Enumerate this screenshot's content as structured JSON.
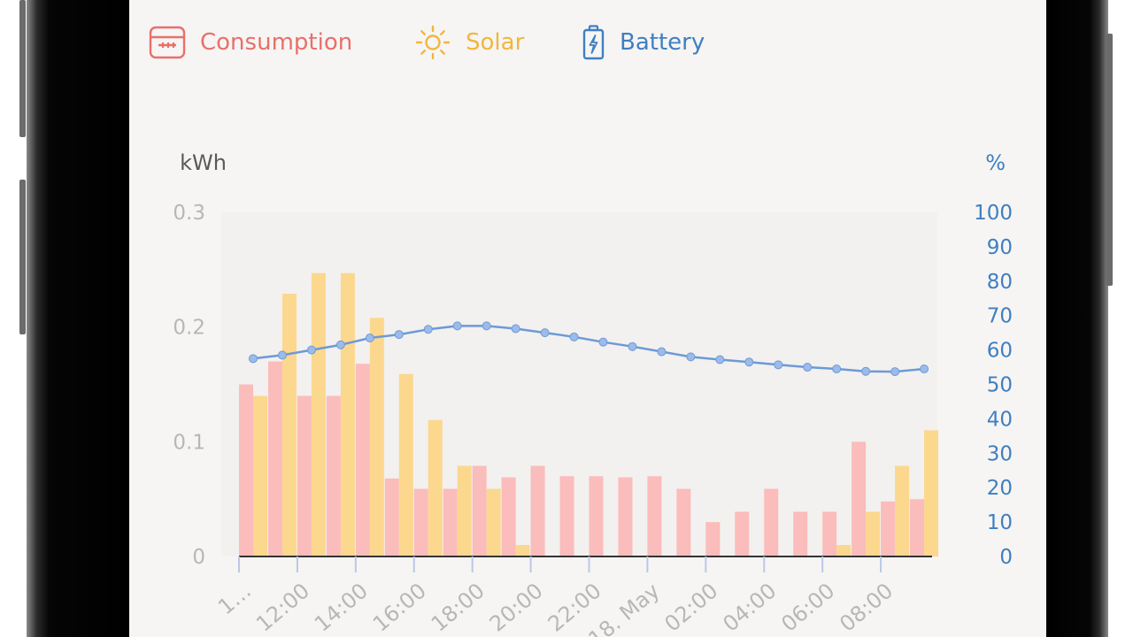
{
  "legend": {
    "consumption": {
      "label": "Consumption",
      "icon": "meter-icon",
      "color": "#e8706a"
    },
    "solar": {
      "label": "Solar",
      "icon": "sun-icon",
      "color": "#f2b63c"
    },
    "battery": {
      "label": "Battery",
      "icon": "battery-icon",
      "color": "#3f7fc1"
    }
  },
  "chart_data": {
    "type": "bar",
    "left_axis": {
      "label": "kWh",
      "ticks": [
        "0.3",
        "0.2",
        "0.1",
        "0"
      ],
      "ylim": [
        0,
        0.3
      ]
    },
    "right_axis": {
      "label": "%",
      "ticks": [
        "100",
        "90",
        "80",
        "70",
        "60",
        "50",
        "40",
        "30",
        "20",
        "10",
        "0"
      ],
      "ylim": [
        0,
        100
      ]
    },
    "x_tick_labels": [
      "1…",
      "12:00",
      "14:00",
      "16:00",
      "18:00",
      "20:00",
      "22:00",
      "18. May",
      "02:00",
      "04:00",
      "06:00",
      "08:00"
    ],
    "series": [
      {
        "name": "Consumption",
        "kind": "bar",
        "color": "#fbbcbc",
        "values": [
          0.15,
          0.17,
          0.14,
          0.14,
          0.168,
          0.068,
          0.059,
          0.059,
          0.079,
          0.069,
          0.079,
          0.07,
          0.07,
          0.069,
          0.07,
          0.059,
          0.03,
          0.039,
          0.059,
          0.039,
          0.039,
          0.1,
          0.048,
          0.05
        ]
      },
      {
        "name": "Solar",
        "kind": "bar",
        "color": "#fcd78e",
        "values": [
          0.14,
          0.229,
          0.247,
          0.247,
          0.208,
          0.159,
          0.119,
          0.079,
          0.059,
          0.01,
          0,
          0,
          0,
          0,
          0,
          0,
          0,
          0,
          0,
          0,
          0.01,
          0.039,
          0.079,
          0.11
        ]
      },
      {
        "name": "Battery",
        "kind": "line",
        "axis": "right",
        "color": "#6d9ad6",
        "values": [
          57.5,
          58.5,
          60,
          61.5,
          63.5,
          64.5,
          66,
          67,
          67,
          66.2,
          65,
          63.8,
          62.3,
          61,
          59.5,
          58,
          57.2,
          56.5,
          55.7,
          55,
          54.5,
          53.8,
          53.7,
          54.5
        ]
      }
    ]
  }
}
